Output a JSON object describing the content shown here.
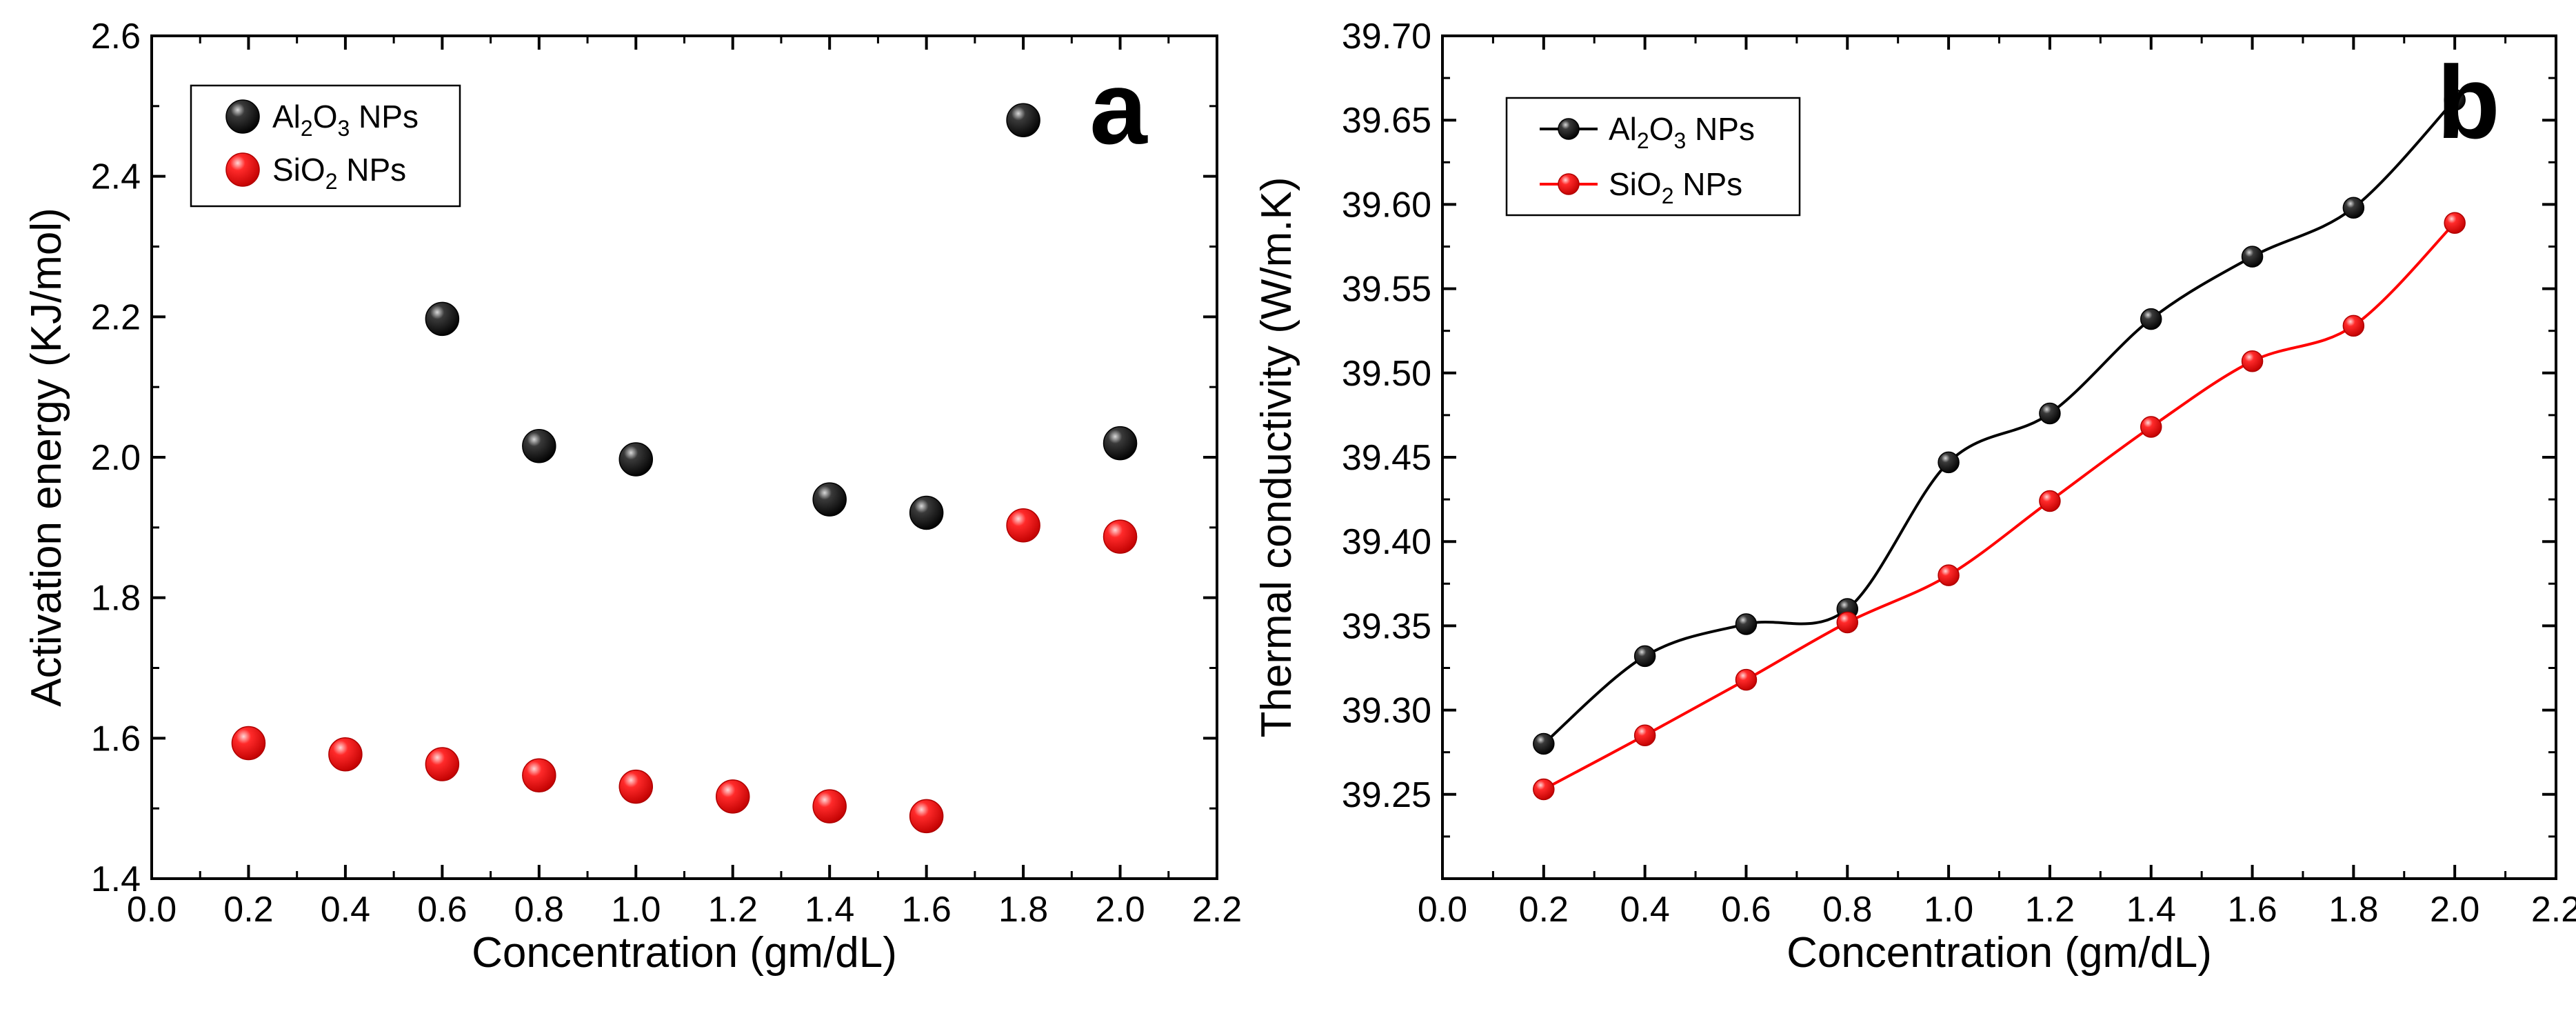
{
  "chart_data": [
    {
      "type": "scatter",
      "panel_label": "a",
      "xlabel": "Concentration (gm/dL)",
      "ylabel": "Activation energy (KJ/mol)",
      "xlim": [
        0.0,
        2.2
      ],
      "ylim": [
        1.4,
        2.6
      ],
      "x_ticks": [
        "0.0",
        "0.2",
        "0.4",
        "0.6",
        "0.8",
        "1.0",
        "1.2",
        "1.4",
        "1.6",
        "1.8",
        "2.0",
        "2.2"
      ],
      "y_ticks": [
        "1.4",
        "1.6",
        "1.8",
        "2.0",
        "2.2",
        "2.4",
        "2.6"
      ],
      "legend_position": "top-left",
      "series": [
        {
          "name": "Al2O3 NPs",
          "label_main": "Al",
          "label_sub1": "2",
          "label_mid": "O",
          "label_sub2": "3",
          "label_tail": " NPs",
          "color": "#111111",
          "x": [
            0.6,
            0.8,
            1.0,
            1.4,
            1.6,
            1.8,
            2.0
          ],
          "values": [
            2.197,
            2.016,
            1.997,
            1.94,
            1.921,
            2.48,
            2.02
          ]
        },
        {
          "name": "SiO2 NPs",
          "label_main": "SiO",
          "label_sub1": "2",
          "label_mid": "",
          "label_sub2": "",
          "label_tail": " NPs",
          "color": "#ee1111",
          "x": [
            0.2,
            0.4,
            0.6,
            0.8,
            1.0,
            1.2,
            1.4,
            1.6,
            1.8,
            2.0
          ],
          "values": [
            1.593,
            1.577,
            1.563,
            1.547,
            1.531,
            1.517,
            1.503,
            1.489,
            1.903,
            1.887
          ]
        }
      ]
    },
    {
      "type": "line",
      "panel_label": "b",
      "xlabel": "Concentration (gm/dL)",
      "ylabel": "Thermal conductivity (W/m.K)",
      "xlim": [
        0.0,
        2.2
      ],
      "ylim": [
        39.2,
        39.7
      ],
      "x_ticks": [
        "0.0",
        "0.2",
        "0.4",
        "0.6",
        "0.8",
        "1.0",
        "1.2",
        "1.4",
        "1.6",
        "1.8",
        "2.0",
        "2.2"
      ],
      "y_ticks": [
        "39.25",
        "39.30",
        "39.35",
        "39.40",
        "39.45",
        "39.50",
        "39.55",
        "39.60",
        "39.65",
        "39.70"
      ],
      "legend_position": "top-left",
      "series": [
        {
          "name": "Al2O3 NPs",
          "label_main": "Al",
          "label_sub1": "2",
          "label_mid": "O",
          "label_sub2": "3",
          "label_tail": " NPs",
          "color": "#111111",
          "x": [
            0.2,
            0.4,
            0.6,
            0.8,
            1.0,
            1.2,
            1.4,
            1.6,
            1.8,
            2.0
          ],
          "values": [
            39.28,
            39.332,
            39.351,
            39.36,
            39.447,
            39.476,
            39.532,
            39.569,
            39.598,
            39.662
          ]
        },
        {
          "name": "SiO2 NPs",
          "label_main": "SiO",
          "label_sub1": "2",
          "label_mid": "",
          "label_sub2": "",
          "label_tail": " NPs",
          "color": "#ee1111",
          "x": [
            0.2,
            0.4,
            0.6,
            0.8,
            1.0,
            1.2,
            1.4,
            1.6,
            1.8,
            2.0
          ],
          "values": [
            39.253,
            39.285,
            39.318,
            39.352,
            39.38,
            39.424,
            39.468,
            39.507,
            39.528,
            39.589
          ]
        }
      ]
    }
  ]
}
